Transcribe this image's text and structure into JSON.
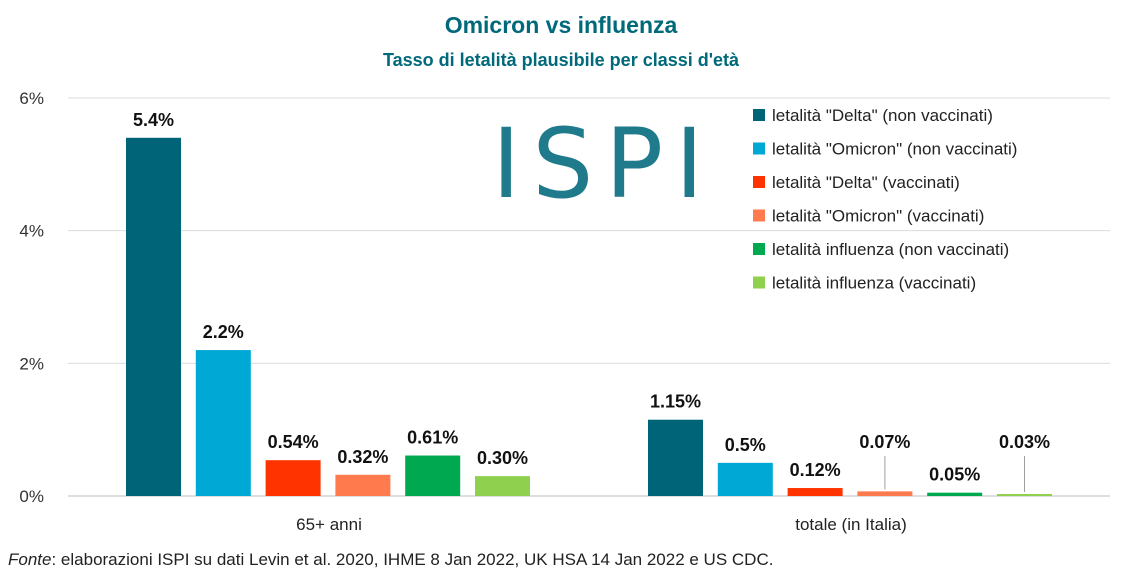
{
  "title": "Omicron vs influenza",
  "subtitle": "Tasso di letalità plausibile per classi d'età",
  "logo_text": "ISPI",
  "source": {
    "prefix": "Fonte",
    "text": ": elaborazioni ISPI su dati Levin et al. 2020, IHME 8 Jan 2022, UK HSA 14 Jan 2022 e US CDC."
  },
  "chart_data": {
    "type": "bar",
    "categories": [
      "65+ anni",
      "totale (in Italia)"
    ],
    "ylim": [
      0,
      6
    ],
    "yticks": [
      0,
      2,
      4,
      6
    ],
    "ytick_labels": [
      "0%",
      "2%",
      "4%",
      "6%"
    ],
    "grid": true,
    "legend_position": "top-right",
    "series": [
      {
        "name": "letalità \"Delta\" (non vaccinati)",
        "color": "#006478",
        "values": [
          5.4,
          1.15
        ],
        "labels": [
          "5.4%",
          "1.15%"
        ]
      },
      {
        "name": "letalità \"Omicron\" (non vaccinati)",
        "color": "#00a8d6",
        "values": [
          2.2,
          0.5
        ],
        "labels": [
          "2.2%",
          "0.5%"
        ]
      },
      {
        "name": "letalità \"Delta\" (vaccinati)",
        "color": "#ff3300",
        "values": [
          0.54,
          0.12
        ],
        "labels": [
          "0.54%",
          "0.12%"
        ]
      },
      {
        "name": "letalità \"Omicron\" (vaccinati)",
        "color": "#ff7a4d",
        "values": [
          0.32,
          0.07
        ],
        "labels": [
          "0.32%",
          "0.07%"
        ]
      },
      {
        "name": "letalità influenza (non vaccinati)",
        "color": "#00a84f",
        "values": [
          0.61,
          0.05
        ],
        "labels": [
          "0.61%",
          "0.05%"
        ]
      },
      {
        "name": "letalità influenza (vaccinati)",
        "color": "#8fd14f",
        "values": [
          0.3,
          0.03
        ],
        "labels": [
          "0.30%",
          "0.03%"
        ]
      }
    ]
  }
}
